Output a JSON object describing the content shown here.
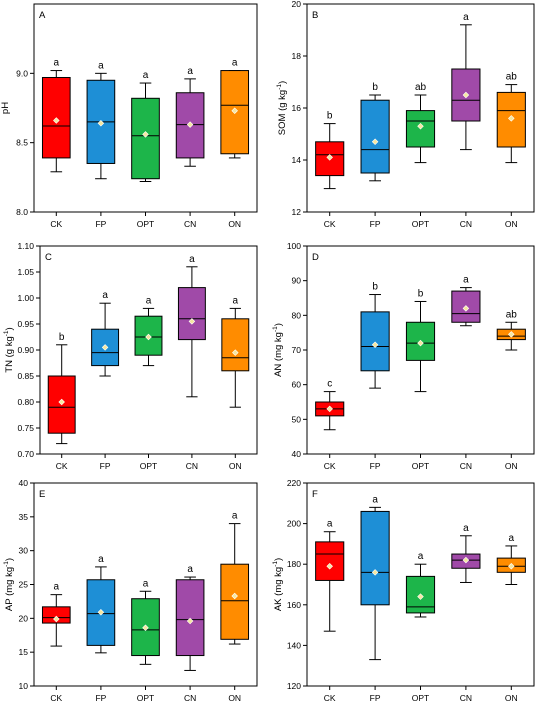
{
  "groups": [
    "CK",
    "FP",
    "OPT",
    "CN",
    "ON"
  ],
  "colors": {
    "CK": "#ff0000",
    "FP": "#1e8fd6",
    "OPT": "#1db54a",
    "CN": "#a04aa8",
    "ON": "#ff8c00"
  },
  "mean_marker_color": "#f5e7a0",
  "chart_data": [
    {
      "type": "box",
      "panel": "A",
      "ylabel": "pH",
      "ylabel_sup": "",
      "ylabel_suffix": "",
      "ylim": [
        8.0,
        9.5
      ],
      "yticks": [
        8.0,
        8.5,
        9.0
      ],
      "tick_format": "0.0",
      "categories": [
        "CK",
        "FP",
        "OPT",
        "CN",
        "ON"
      ],
      "boxes": [
        {
          "whisker_low": 8.29,
          "q1": 8.39,
          "median": 8.62,
          "q3": 8.97,
          "whisker_high": 9.02,
          "mean": 8.66,
          "letter": "a"
        },
        {
          "whisker_low": 8.24,
          "q1": 8.35,
          "median": 8.65,
          "q3": 8.95,
          "whisker_high": 9.0,
          "mean": 8.64,
          "letter": "a"
        },
        {
          "whisker_low": 8.22,
          "q1": 8.24,
          "median": 8.55,
          "q3": 8.82,
          "whisker_high": 8.93,
          "mean": 8.56,
          "letter": "a"
        },
        {
          "whisker_low": 8.33,
          "q1": 8.39,
          "median": 8.63,
          "q3": 8.86,
          "whisker_high": 8.96,
          "mean": 8.63,
          "letter": "a"
        },
        {
          "whisker_low": 8.39,
          "q1": 8.42,
          "median": 8.77,
          "q3": 9.02,
          "whisker_high": 9.02,
          "mean": 8.73,
          "letter": "a"
        }
      ]
    },
    {
      "type": "box",
      "panel": "B",
      "ylabel": "SOM (g kg",
      "ylabel_sup": "-1",
      "ylabel_suffix": ")",
      "ylim": [
        12,
        20
      ],
      "yticks": [
        12,
        14,
        16,
        18,
        20
      ],
      "tick_format": "0",
      "categories": [
        "CK",
        "FP",
        "OPT",
        "CN",
        "ON"
      ],
      "boxes": [
        {
          "whisker_low": 12.9,
          "q1": 13.4,
          "median": 14.2,
          "q3": 14.7,
          "whisker_high": 15.4,
          "mean": 14.1,
          "letter": "b"
        },
        {
          "whisker_low": 13.2,
          "q1": 13.5,
          "median": 14.4,
          "q3": 16.3,
          "whisker_high": 16.5,
          "mean": 14.7,
          "letter": "b"
        },
        {
          "whisker_low": 13.9,
          "q1": 14.5,
          "median": 15.5,
          "q3": 15.9,
          "whisker_high": 16.5,
          "mean": 15.3,
          "letter": "ab"
        },
        {
          "whisker_low": 14.4,
          "q1": 15.5,
          "median": 16.3,
          "q3": 17.5,
          "whisker_high": 19.2,
          "mean": 16.5,
          "letter": "a"
        },
        {
          "whisker_low": 13.9,
          "q1": 14.5,
          "median": 15.9,
          "q3": 16.6,
          "whisker_high": 16.9,
          "mean": 15.6,
          "letter": "ab"
        }
      ]
    },
    {
      "type": "box",
      "panel": "C",
      "ylabel": "TN (g kg",
      "ylabel_sup": "-1",
      "ylabel_suffix": ")",
      "ylim": [
        0.7,
        1.1
      ],
      "yticks": [
        0.7,
        0.75,
        0.8,
        0.85,
        0.9,
        0.95,
        1.0,
        1.05,
        1.1
      ],
      "tick_format": "0.00",
      "categories": [
        "CK",
        "FP",
        "OPT",
        "CN",
        "ON"
      ],
      "boxes": [
        {
          "whisker_low": 0.72,
          "q1": 0.74,
          "median": 0.79,
          "q3": 0.85,
          "whisker_high": 0.91,
          "mean": 0.8,
          "letter": "b"
        },
        {
          "whisker_low": 0.85,
          "q1": 0.87,
          "median": 0.895,
          "q3": 0.94,
          "whisker_high": 0.99,
          "mean": 0.905,
          "letter": "a"
        },
        {
          "whisker_low": 0.87,
          "q1": 0.89,
          "median": 0.925,
          "q3": 0.965,
          "whisker_high": 0.98,
          "mean": 0.925,
          "letter": "a"
        },
        {
          "whisker_low": 0.81,
          "q1": 0.92,
          "median": 0.96,
          "q3": 1.02,
          "whisker_high": 1.06,
          "mean": 0.955,
          "letter": "a"
        },
        {
          "whisker_low": 0.79,
          "q1": 0.86,
          "median": 0.885,
          "q3": 0.96,
          "whisker_high": 0.98,
          "mean": 0.895,
          "letter": "a"
        }
      ]
    },
    {
      "type": "box",
      "panel": "D",
      "ylabel": "AN (mg kg",
      "ylabel_sup": "-1",
      "ylabel_suffix": ")",
      "ylim": [
        40,
        100
      ],
      "yticks": [
        40,
        50,
        60,
        70,
        80,
        90,
        100
      ],
      "tick_format": "0",
      "categories": [
        "CK",
        "FP",
        "OPT",
        "CN",
        "ON"
      ],
      "boxes": [
        {
          "whisker_low": 47,
          "q1": 51,
          "median": 53,
          "q3": 55,
          "whisker_high": 58,
          "mean": 53,
          "letter": "c"
        },
        {
          "whisker_low": 59,
          "q1": 64,
          "median": 71,
          "q3": 81,
          "whisker_high": 86,
          "mean": 71.5,
          "letter": "b"
        },
        {
          "whisker_low": 58,
          "q1": 67,
          "median": 72,
          "q3": 78,
          "whisker_high": 84,
          "mean": 72,
          "letter": "b"
        },
        {
          "whisker_low": 77,
          "q1": 78,
          "median": 80.5,
          "q3": 87,
          "whisker_high": 88,
          "mean": 82,
          "letter": "a"
        },
        {
          "whisker_low": 70,
          "q1": 73,
          "median": 74,
          "q3": 76,
          "whisker_high": 78,
          "mean": 74.5,
          "letter": "ab"
        }
      ]
    },
    {
      "type": "box",
      "panel": "E",
      "ylabel": "AP (mg kg",
      "ylabel_sup": "-1",
      "ylabel_suffix": ")",
      "ylim": [
        10,
        40
      ],
      "yticks": [
        10,
        15,
        20,
        25,
        30,
        35,
        40
      ],
      "tick_format": "0",
      "categories": [
        "CK",
        "FP",
        "OPT",
        "CN",
        "ON"
      ],
      "boxes": [
        {
          "whisker_low": 15.9,
          "q1": 19.3,
          "median": 20.1,
          "q3": 21.7,
          "whisker_high": 23.5,
          "mean": 19.9,
          "letter": "a"
        },
        {
          "whisker_low": 14.9,
          "q1": 16.0,
          "median": 20.7,
          "q3": 25.7,
          "whisker_high": 27.6,
          "mean": 20.9,
          "letter": "a"
        },
        {
          "whisker_low": 13.2,
          "q1": 14.5,
          "median": 18.3,
          "q3": 22.9,
          "whisker_high": 24.0,
          "mean": 18.6,
          "letter": "a"
        },
        {
          "whisker_low": 12.3,
          "q1": 14.5,
          "median": 19.8,
          "q3": 25.7,
          "whisker_high": 26.1,
          "mean": 19.6,
          "letter": "a"
        },
        {
          "whisker_low": 16.2,
          "q1": 16.9,
          "median": 22.6,
          "q3": 28.0,
          "whisker_high": 34.0,
          "mean": 23.3,
          "letter": "a"
        }
      ]
    },
    {
      "type": "box",
      "panel": "F",
      "ylabel": "AK (mg kg",
      "ylabel_sup": "-1",
      "ylabel_suffix": ")",
      "ylim": [
        120,
        220
      ],
      "yticks": [
        120,
        140,
        160,
        180,
        200,
        220
      ],
      "tick_format": "0",
      "categories": [
        "CK",
        "FP",
        "OPT",
        "CN",
        "ON"
      ],
      "boxes": [
        {
          "whisker_low": 147,
          "q1": 172,
          "median": 185,
          "q3": 191,
          "whisker_high": 196,
          "mean": 179,
          "letter": "a"
        },
        {
          "whisker_low": 133,
          "q1": 160,
          "median": 176,
          "q3": 206,
          "whisker_high": 208,
          "mean": 176,
          "letter": "a"
        },
        {
          "whisker_low": 154,
          "q1": 156,
          "median": 159,
          "q3": 174,
          "whisker_high": 180,
          "mean": 164,
          "letter": "a"
        },
        {
          "whisker_low": 171,
          "q1": 178,
          "median": 182,
          "q3": 185,
          "whisker_high": 194,
          "mean": 182,
          "letter": "a"
        },
        {
          "whisker_low": 170,
          "q1": 176,
          "median": 179,
          "q3": 183,
          "whisker_high": 189,
          "mean": 179,
          "letter": "a"
        }
      ]
    }
  ]
}
